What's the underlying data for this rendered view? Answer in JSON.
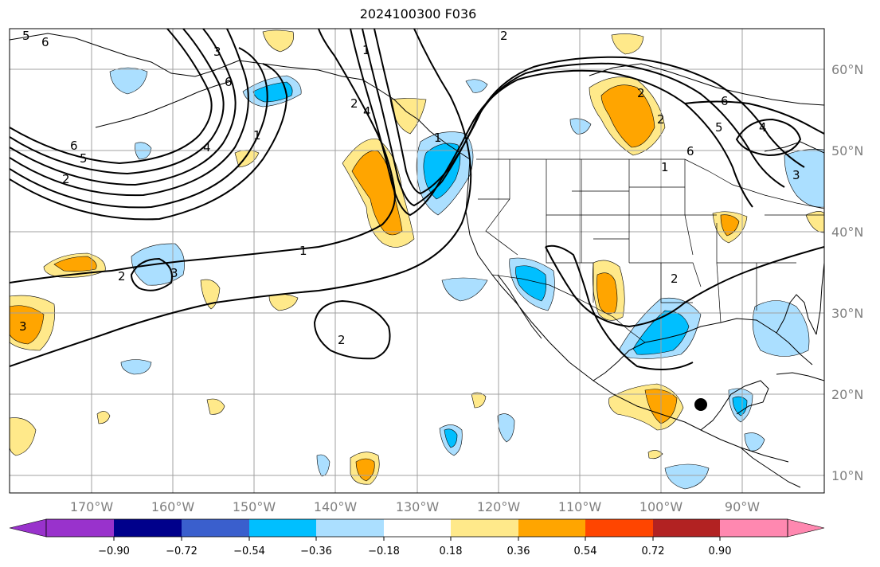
{
  "title": "2024100300 F036",
  "colors": {
    "grid": "#a0a0a0",
    "contour": "#000000",
    "coast": "#000000",
    "fill": {
      "neg_54": "#00bfff",
      "neg_36": "#abdfff",
      "pos_36": "#ffe98a",
      "pos_54": "#ffa500"
    }
  },
  "lat_labels": [
    "60°N",
    "50°N",
    "40°N",
    "30°N",
    "20°N",
    "10°N"
  ],
  "lon_labels": [
    "170°W",
    "160°W",
    "150°W",
    "140°W",
    "130°W",
    "120°W",
    "110°W",
    "100°W",
    "90°W"
  ],
  "contour_labels": [
    "6",
    "5",
    "6",
    "3",
    "1",
    "4",
    "6",
    "5",
    "2",
    "2",
    "2",
    "1",
    "2",
    "3",
    "2",
    "2",
    "1",
    "2",
    "3",
    "6",
    "5",
    "6",
    "4",
    "1",
    "4",
    "1",
    "2",
    "3"
  ],
  "marker": {
    "name": "storm-center",
    "lon": -95.5,
    "lat": 18.8
  },
  "colorbar": {
    "colors": [
      "#9932cc",
      "#00008b",
      "#3a5fcd",
      "#00bfff",
      "#abdfff",
      "#ffffff",
      "#ffe98a",
      "#ffa500",
      "#ff4500",
      "#b22222",
      "#ff88b0"
    ],
    "ticks": [
      "−0.90",
      "−0.72",
      "−0.54",
      "−0.36",
      "−0.18",
      "0.18",
      "0.36",
      "0.54",
      "0.72",
      "0.90"
    ]
  }
}
